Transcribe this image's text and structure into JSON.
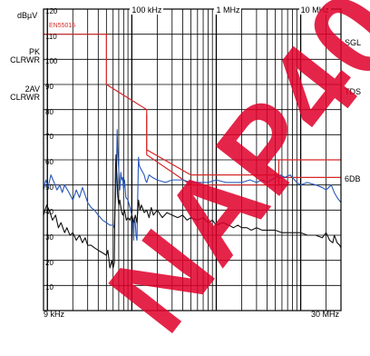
{
  "chart_data": {
    "type": "line",
    "ylabel": "dBµV",
    "x_start_label": "9 kHz",
    "x_end_label": "30 MHz",
    "x_scale": "log",
    "xlim": [
      9000,
      30000000
    ],
    "ylim": [
      0,
      120
    ],
    "y_ticks": [
      {
        "value": 120,
        "label": "120"
      },
      {
        "value": 110,
        "label": "110"
      },
      {
        "value": 100,
        "label": "100"
      },
      {
        "value": 90,
        "label": "90"
      },
      {
        "value": 80,
        "label": "80"
      },
      {
        "value": 70,
        "label": "70"
      },
      {
        "value": 60,
        "label": "60"
      },
      {
        "value": 50,
        "label": "50"
      },
      {
        "value": 40,
        "label": "40"
      },
      {
        "value": 30,
        "label": "30"
      },
      {
        "value": 20,
        "label": "20"
      },
      {
        "value": 10,
        "label": "10"
      }
    ],
    "x_ticks": [
      {
        "value": 100000,
        "label": "100 kHz"
      },
      {
        "value": 1000000,
        "label": "1 MHz"
      },
      {
        "value": 10000000,
        "label": "10 MHz"
      }
    ],
    "grid": true,
    "left_labels": [
      {
        "text": "PK\nCLRWR"
      },
      {
        "text": "2AV\nCLRWR"
      }
    ],
    "right_labels": [
      {
        "text": "SGL"
      },
      {
        "text": "TDS"
      },
      {
        "text": "6DB"
      }
    ],
    "limit_label": "EN55015",
    "limit_lines": [
      {
        "color": "#d62828",
        "points": [
          [
            9000,
            110
          ],
          [
            50000,
            110
          ],
          [
            50000,
            90
          ],
          [
            150000,
            80
          ],
          [
            150000,
            64
          ],
          [
            500000,
            54
          ],
          [
            5500000,
            54
          ],
          [
            5500000,
            60
          ],
          [
            30000000,
            60
          ]
        ]
      },
      {
        "color": "#d62828",
        "points": [
          [
            150000,
            78
          ],
          [
            150000,
            62
          ],
          [
            500000,
            50
          ],
          [
            5500000,
            50
          ],
          [
            5500000,
            53
          ],
          [
            30000000,
            53
          ]
        ]
      }
    ],
    "series": [
      {
        "color": "#2857b8",
        "points": [
          [
            9000,
            48
          ],
          [
            9600,
            52
          ],
          [
            10200,
            49
          ],
          [
            11000,
            54
          ],
          [
            12000,
            51
          ],
          [
            13000,
            48
          ],
          [
            14000,
            50
          ],
          [
            15000,
            47
          ],
          [
            16000,
            50
          ],
          [
            18000,
            47
          ],
          [
            20000,
            44
          ],
          [
            22000,
            48
          ],
          [
            24000,
            45
          ],
          [
            26000,
            49
          ],
          [
            28000,
            46
          ],
          [
            30000,
            43
          ],
          [
            33000,
            41
          ],
          [
            36000,
            40
          ],
          [
            40000,
            38
          ],
          [
            45000,
            36
          ],
          [
            50000,
            35
          ],
          [
            55000,
            34
          ],
          [
            60000,
            34
          ],
          [
            62000,
            33
          ],
          [
            64000,
            44
          ],
          [
            66000,
            58
          ],
          [
            67000,
            72
          ],
          [
            68000,
            64
          ],
          [
            70000,
            56
          ],
          [
            72000,
            48
          ],
          [
            74000,
            55
          ],
          [
            76000,
            52
          ],
          [
            78000,
            53
          ],
          [
            80000,
            48
          ],
          [
            82000,
            52
          ],
          [
            85000,
            45
          ],
          [
            90000,
            44
          ],
          [
            95000,
            41
          ],
          [
            100000,
            38
          ],
          [
            103000,
            36
          ],
          [
            105000,
            28
          ],
          [
            107000,
            37
          ],
          [
            110000,
            35
          ],
          [
            112000,
            30
          ],
          [
            115000,
            28
          ],
          [
            118000,
            49
          ],
          [
            120000,
            61
          ],
          [
            122000,
            58
          ],
          [
            125000,
            57
          ],
          [
            130000,
            56
          ],
          [
            135000,
            55
          ],
          [
            140000,
            54
          ],
          [
            145000,
            52
          ],
          [
            150000,
            51
          ],
          [
            160000,
            54
          ],
          [
            175000,
            53
          ],
          [
            200000,
            52
          ],
          [
            250000,
            51
          ],
          [
            300000,
            52
          ],
          [
            400000,
            52
          ],
          [
            500000,
            51
          ],
          [
            600000,
            51
          ],
          [
            800000,
            51
          ],
          [
            1000000,
            52
          ],
          [
            1300000,
            51
          ],
          [
            1600000,
            51
          ],
          [
            2000000,
            51
          ],
          [
            2500000,
            52
          ],
          [
            3000000,
            51
          ],
          [
            3500000,
            52
          ],
          [
            4000000,
            51
          ],
          [
            4500000,
            52
          ],
          [
            5000000,
            53
          ],
          [
            5800000,
            54
          ],
          [
            6500000,
            53
          ],
          [
            7500000,
            54
          ],
          [
            9000000,
            51
          ],
          [
            10000000,
            50
          ],
          [
            12000000,
            51
          ],
          [
            15000000,
            50
          ],
          [
            18000000,
            49
          ],
          [
            20000000,
            48
          ],
          [
            23000000,
            50
          ],
          [
            25000000,
            47
          ],
          [
            27000000,
            45
          ],
          [
            30000000,
            43
          ]
        ]
      },
      {
        "color": "#111111",
        "points": [
          [
            9000,
            38
          ],
          [
            9800,
            42
          ],
          [
            10500,
            40
          ],
          [
            11500,
            36
          ],
          [
            12500,
            38
          ],
          [
            13500,
            33
          ],
          [
            14500,
            35
          ],
          [
            16000,
            31
          ],
          [
            17000,
            33
          ],
          [
            18500,
            30
          ],
          [
            20000,
            31
          ],
          [
            22000,
            28
          ],
          [
            24000,
            30
          ],
          [
            26000,
            27
          ],
          [
            28000,
            29
          ],
          [
            30000,
            26
          ],
          [
            33000,
            26
          ],
          [
            36000,
            25
          ],
          [
            40000,
            24
          ],
          [
            45000,
            23
          ],
          [
            50000,
            22
          ],
          [
            52000,
            24
          ],
          [
            55000,
            17
          ],
          [
            58000,
            20
          ],
          [
            60000,
            17
          ],
          [
            62000,
            19
          ],
          [
            63000,
            40
          ],
          [
            64000,
            56
          ],
          [
            65000,
            62
          ],
          [
            66000,
            56
          ],
          [
            67000,
            52
          ],
          [
            68000,
            46
          ],
          [
            70000,
            42
          ],
          [
            72000,
            44
          ],
          [
            75000,
            40
          ],
          [
            78000,
            38
          ],
          [
            82000,
            40
          ],
          [
            86000,
            36
          ],
          [
            90000,
            37
          ],
          [
            95000,
            36
          ],
          [
            100000,
            38
          ],
          [
            105000,
            35
          ],
          [
            110000,
            38
          ],
          [
            115000,
            35
          ],
          [
            120000,
            44
          ],
          [
            125000,
            40
          ],
          [
            130000,
            42
          ],
          [
            140000,
            39
          ],
          [
            150000,
            40
          ],
          [
            160000,
            37
          ],
          [
            170000,
            41
          ],
          [
            180000,
            38
          ],
          [
            200000,
            40
          ],
          [
            230000,
            37
          ],
          [
            260000,
            39
          ],
          [
            300000,
            38
          ],
          [
            350000,
            37
          ],
          [
            400000,
            38
          ],
          [
            450000,
            36
          ],
          [
            500000,
            37
          ],
          [
            600000,
            36
          ],
          [
            700000,
            37
          ],
          [
            800000,
            35
          ],
          [
            900000,
            36
          ],
          [
            1000000,
            34
          ],
          [
            1200000,
            35
          ],
          [
            1400000,
            34
          ],
          [
            1600000,
            33
          ],
          [
            1800000,
            34
          ],
          [
            2000000,
            33
          ],
          [
            2300000,
            33
          ],
          [
            2600000,
            32
          ],
          [
            3000000,
            33
          ],
          [
            3500000,
            32
          ],
          [
            4000000,
            32
          ],
          [
            5000000,
            32
          ],
          [
            6000000,
            31
          ],
          [
            7000000,
            31
          ],
          [
            8000000,
            31
          ],
          [
            10000000,
            31
          ],
          [
            12000000,
            30
          ],
          [
            15000000,
            30
          ],
          [
            18000000,
            29
          ],
          [
            20000000,
            31
          ],
          [
            22000000,
            28
          ],
          [
            24000000,
            27
          ],
          [
            25000000,
            30
          ],
          [
            27000000,
            27
          ],
          [
            29000000,
            26
          ],
          [
            30000000,
            25
          ]
        ]
      }
    ]
  },
  "watermark": {
    "text": "NAP40",
    "color": "#e0002a"
  }
}
